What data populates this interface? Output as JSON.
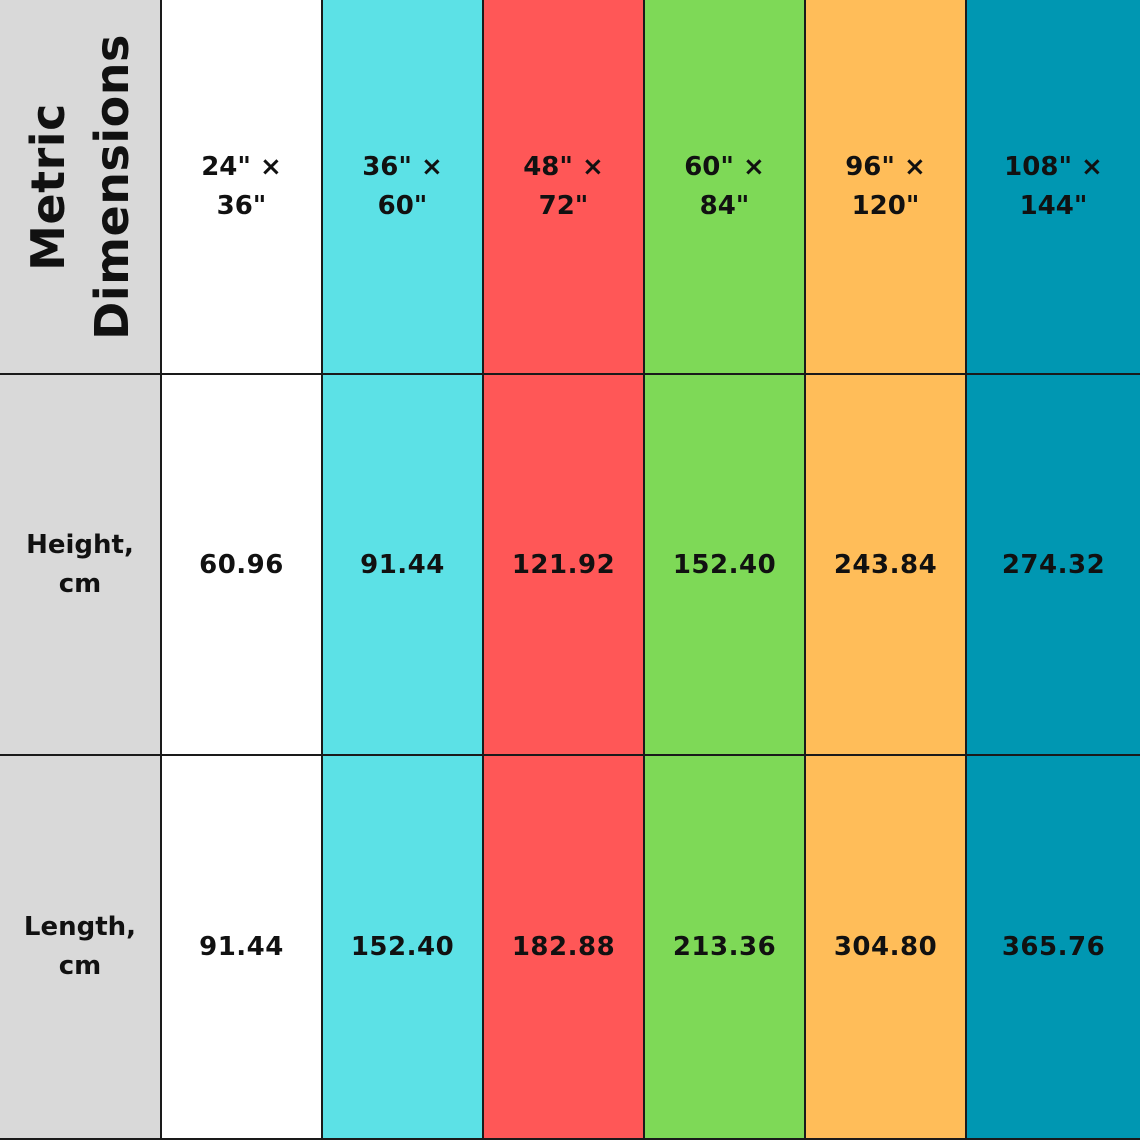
{
  "header": {
    "corner_line1": "Metric",
    "corner_line2": "Dimensions"
  },
  "columns": [
    {
      "label": "24\" ×\n36\"",
      "color": "#ffffff"
    },
    {
      "label": "36\" ×\n60\"",
      "color": "#5ce1e6"
    },
    {
      "label": "48\" ×\n72\"",
      "color": "#ff5757"
    },
    {
      "label": "60\" ×\n84\"",
      "color": "#7ed957"
    },
    {
      "label": "96\" ×\n120\"",
      "color": "#ffbd59"
    },
    {
      "label": "108\" ×\n144\"",
      "color": "#0097b2"
    }
  ],
  "rows": [
    {
      "label": "Height,\ncm",
      "values": [
        "60.96",
        "91.44",
        "121.92",
        "152.40",
        "243.84",
        "274.32"
      ]
    },
    {
      "label": "Length,\ncm",
      "values": [
        "91.44",
        "152.40",
        "182.88",
        "213.36",
        "304.80",
        "365.76"
      ]
    }
  ],
  "colors": {
    "label_column": "#d9d9d9",
    "border": "#1a1a1a",
    "text": "#111111"
  }
}
